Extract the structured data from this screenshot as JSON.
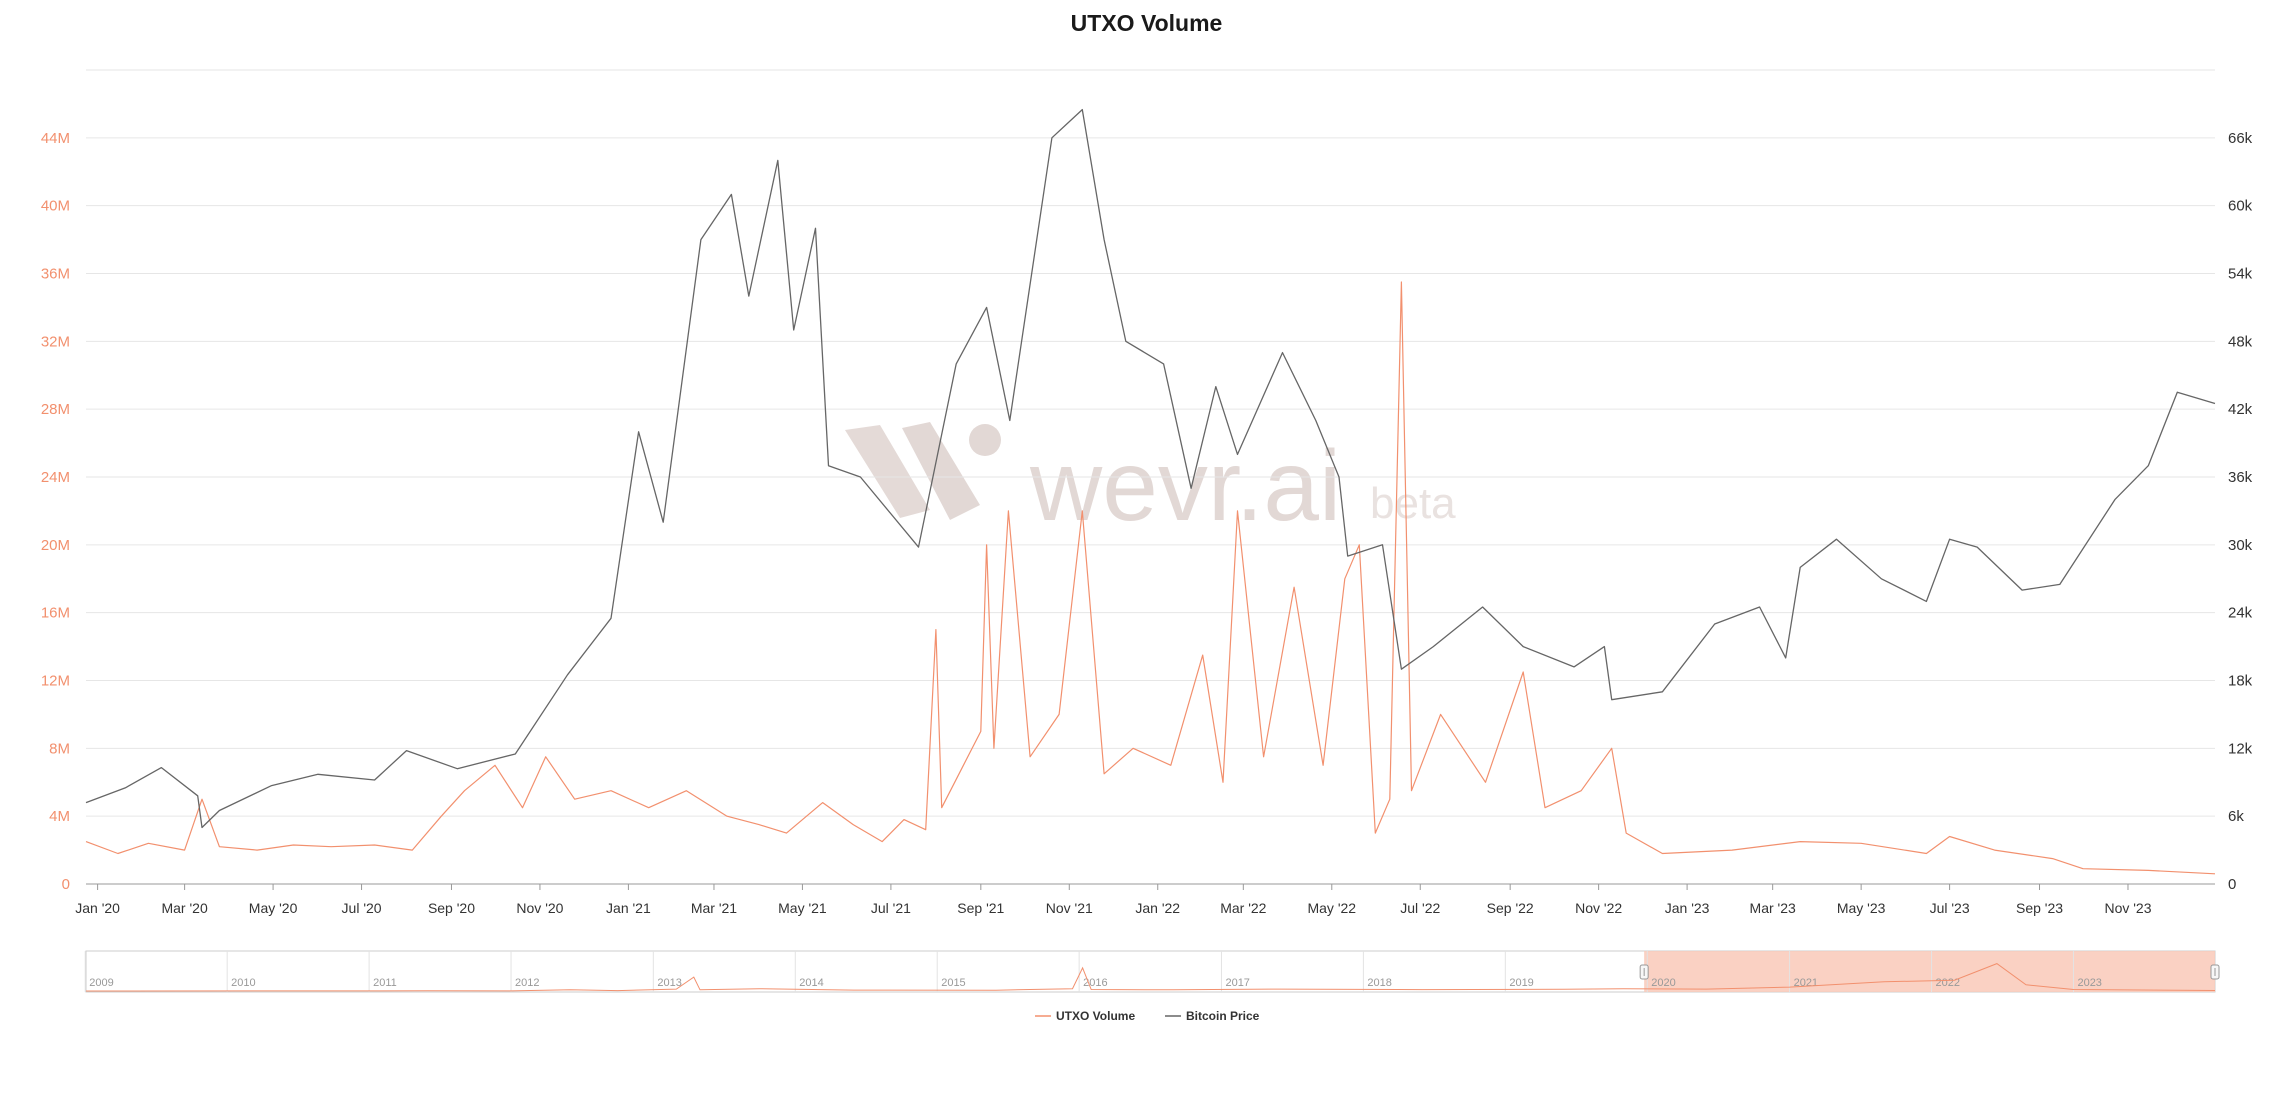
{
  "title": "UTXO Volume",
  "watermark": {
    "brand": "wevr.ai",
    "tag": "beta"
  },
  "colors": {
    "volume": "#f2906e",
    "price": "#666666",
    "navigator_fill": "#f9c9b8",
    "grid": "#e6e6e6"
  },
  "legend": [
    {
      "label": "UTXO Volume",
      "color": "#f2906e"
    },
    {
      "label": "Bitcoin Price",
      "color": "#666666"
    }
  ],
  "chart_data": {
    "type": "line",
    "title": "UTXO Volume",
    "x_range": [
      "2019-12-24",
      "2023-12-31"
    ],
    "y_left": {
      "label": "UTXO Volume",
      "range": [
        0,
        48000000
      ],
      "ticks": [
        0,
        4000000,
        8000000,
        12000000,
        16000000,
        20000000,
        24000000,
        28000000,
        32000000,
        36000000,
        40000000,
        44000000
      ],
      "tick_labels": [
        "0",
        "4M",
        "8M",
        "12M",
        "16M",
        "20M",
        "24M",
        "28M",
        "32M",
        "36M",
        "40M",
        "44M"
      ]
    },
    "y_right": {
      "label": "Bitcoin Price",
      "range": [
        0,
        72000
      ],
      "ticks": [
        0,
        6000,
        12000,
        18000,
        24000,
        30000,
        36000,
        42000,
        48000,
        54000,
        60000,
        66000
      ],
      "tick_labels": [
        "0",
        "6k",
        "12k",
        "18k",
        "24k",
        "30k",
        "36k",
        "42k",
        "48k",
        "54k",
        "60k",
        "66k"
      ]
    },
    "x_ticks": [
      {
        "date": "2020-01-01",
        "label": "Jan '20"
      },
      {
        "date": "2020-03-01",
        "label": "Mar '20"
      },
      {
        "date": "2020-05-01",
        "label": "May '20"
      },
      {
        "date": "2020-07-01",
        "label": "Jul '20"
      },
      {
        "date": "2020-09-01",
        "label": "Sep '20"
      },
      {
        "date": "2020-11-01",
        "label": "Nov '20"
      },
      {
        "date": "2021-01-01",
        "label": "Jan '21"
      },
      {
        "date": "2021-03-01",
        "label": "Mar '21"
      },
      {
        "date": "2021-05-01",
        "label": "May '21"
      },
      {
        "date": "2021-07-01",
        "label": "Jul '21"
      },
      {
        "date": "2021-09-01",
        "label": "Sep '21"
      },
      {
        "date": "2021-11-01",
        "label": "Nov '21"
      },
      {
        "date": "2022-01-01",
        "label": "Jan '22"
      },
      {
        "date": "2022-03-01",
        "label": "Mar '22"
      },
      {
        "date": "2022-05-01",
        "label": "May '22"
      },
      {
        "date": "2022-07-01",
        "label": "Jul '22"
      },
      {
        "date": "2022-09-01",
        "label": "Sep '22"
      },
      {
        "date": "2022-11-01",
        "label": "Nov '22"
      },
      {
        "date": "2023-01-01",
        "label": "Jan '23"
      },
      {
        "date": "2023-03-01",
        "label": "Mar '23"
      },
      {
        "date": "2023-05-01",
        "label": "May '23"
      },
      {
        "date": "2023-07-01",
        "label": "Jul '23"
      },
      {
        "date": "2023-09-01",
        "label": "Sep '23"
      },
      {
        "date": "2023-11-01",
        "label": "Nov '23"
      }
    ],
    "legend_position": "bottom",
    "grid": true,
    "series": [
      {
        "name": "UTXO Volume",
        "axis": "left",
        "color": "#f2906e",
        "points": [
          [
            "2019-12-24",
            2500000
          ],
          [
            "2020-01-15",
            1800000
          ],
          [
            "2020-02-05",
            2400000
          ],
          [
            "2020-03-01",
            2000000
          ],
          [
            "2020-03-13",
            5000000
          ],
          [
            "2020-03-25",
            2200000
          ],
          [
            "2020-04-20",
            2000000
          ],
          [
            "2020-05-15",
            2300000
          ],
          [
            "2020-06-10",
            2200000
          ],
          [
            "2020-07-10",
            2300000
          ],
          [
            "2020-08-05",
            2000000
          ],
          [
            "2020-08-25",
            4000000
          ],
          [
            "2020-09-10",
            5500000
          ],
          [
            "2020-10-01",
            7000000
          ],
          [
            "2020-10-20",
            4500000
          ],
          [
            "2020-11-05",
            7500000
          ],
          [
            "2020-11-25",
            5000000
          ],
          [
            "2020-12-20",
            5500000
          ],
          [
            "2021-01-15",
            4500000
          ],
          [
            "2021-02-10",
            5500000
          ],
          [
            "2021-03-10",
            4000000
          ],
          [
            "2021-04-01",
            3500000
          ],
          [
            "2021-04-20",
            3000000
          ],
          [
            "2021-05-15",
            4800000
          ],
          [
            "2021-06-05",
            3500000
          ],
          [
            "2021-06-25",
            2500000
          ],
          [
            "2021-07-10",
            3800000
          ],
          [
            "2021-07-25",
            3200000
          ],
          [
            "2021-08-01",
            15000000
          ],
          [
            "2021-08-05",
            4500000
          ],
          [
            "2021-08-20",
            7000000
          ],
          [
            "2021-09-01",
            9000000
          ],
          [
            "2021-09-05",
            20000000
          ],
          [
            "2021-09-10",
            8000000
          ],
          [
            "2021-09-20",
            22000000
          ],
          [
            "2021-10-05",
            7500000
          ],
          [
            "2021-10-25",
            10000000
          ],
          [
            "2021-11-10",
            22000000
          ],
          [
            "2021-11-25",
            6500000
          ],
          [
            "2021-12-15",
            8000000
          ],
          [
            "2022-01-10",
            7000000
          ],
          [
            "2022-02-01",
            13500000
          ],
          [
            "2022-02-15",
            6000000
          ],
          [
            "2022-02-25",
            22000000
          ],
          [
            "2022-03-15",
            7500000
          ],
          [
            "2022-04-05",
            17500000
          ],
          [
            "2022-04-25",
            7000000
          ],
          [
            "2022-05-10",
            18000000
          ],
          [
            "2022-05-20",
            20000000
          ],
          [
            "2022-05-31",
            3000000
          ],
          [
            "2022-06-10",
            5000000
          ],
          [
            "2022-06-18",
            35500000
          ],
          [
            "2022-06-25",
            5500000
          ],
          [
            "2022-07-15",
            10000000
          ],
          [
            "2022-08-15",
            6000000
          ],
          [
            "2022-09-10",
            12500000
          ],
          [
            "2022-09-25",
            4500000
          ],
          [
            "2022-10-20",
            5500000
          ],
          [
            "2022-11-10",
            8000000
          ],
          [
            "2022-11-20",
            3000000
          ],
          [
            "2022-12-15",
            1800000
          ],
          [
            "2023-02-01",
            2000000
          ],
          [
            "2023-03-20",
            2500000
          ],
          [
            "2023-05-01",
            2400000
          ],
          [
            "2023-06-15",
            1800000
          ],
          [
            "2023-07-01",
            2800000
          ],
          [
            "2023-08-01",
            2000000
          ],
          [
            "2023-09-10",
            1500000
          ],
          [
            "2023-10-01",
            900000
          ],
          [
            "2023-11-15",
            800000
          ],
          [
            "2023-12-31",
            600000
          ]
        ]
      },
      {
        "name": "Bitcoin Price",
        "axis": "right",
        "color": "#666666",
        "points": [
          [
            "2019-12-24",
            7200
          ],
          [
            "2020-01-20",
            8500
          ],
          [
            "2020-02-14",
            10300
          ],
          [
            "2020-03-10",
            7800
          ],
          [
            "2020-03-13",
            5000
          ],
          [
            "2020-03-25",
            6500
          ],
          [
            "2020-04-30",
            8700
          ],
          [
            "2020-06-01",
            9700
          ],
          [
            "2020-07-10",
            9200
          ],
          [
            "2020-08-01",
            11800
          ],
          [
            "2020-09-05",
            10200
          ],
          [
            "2020-10-15",
            11500
          ],
          [
            "2020-11-20",
            18500
          ],
          [
            "2020-12-20",
            23500
          ],
          [
            "2021-01-08",
            40000
          ],
          [
            "2021-01-25",
            32000
          ],
          [
            "2021-02-20",
            57000
          ],
          [
            "2021-03-13",
            61000
          ],
          [
            "2021-03-25",
            52000
          ],
          [
            "2021-04-14",
            64000
          ],
          [
            "2021-04-25",
            49000
          ],
          [
            "2021-05-10",
            58000
          ],
          [
            "2021-05-19",
            37000
          ],
          [
            "2021-06-10",
            36000
          ],
          [
            "2021-07-20",
            29800
          ],
          [
            "2021-08-15",
            46000
          ],
          [
            "2021-09-05",
            51000
          ],
          [
            "2021-09-21",
            41000
          ],
          [
            "2021-10-20",
            66000
          ],
          [
            "2021-11-10",
            68500
          ],
          [
            "2021-11-25",
            57000
          ],
          [
            "2021-12-10",
            48000
          ],
          [
            "2022-01-05",
            46000
          ],
          [
            "2022-01-24",
            35000
          ],
          [
            "2022-02-10",
            44000
          ],
          [
            "2022-02-25",
            38000
          ],
          [
            "2022-03-28",
            47000
          ],
          [
            "2022-04-20",
            41000
          ],
          [
            "2022-05-06",
            36000
          ],
          [
            "2022-05-12",
            29000
          ],
          [
            "2022-06-05",
            30000
          ],
          [
            "2022-06-18",
            19000
          ],
          [
            "2022-07-10",
            21000
          ],
          [
            "2022-08-13",
            24500
          ],
          [
            "2022-09-10",
            21000
          ],
          [
            "2022-10-15",
            19200
          ],
          [
            "2022-11-05",
            21000
          ],
          [
            "2022-11-10",
            16300
          ],
          [
            "2022-12-15",
            17000
          ],
          [
            "2023-01-20",
            23000
          ],
          [
            "2023-02-20",
            24500
          ],
          [
            "2023-03-10",
            20000
          ],
          [
            "2023-03-20",
            28000
          ],
          [
            "2023-04-14",
            30500
          ],
          [
            "2023-05-15",
            27000
          ],
          [
            "2023-06-15",
            25000
          ],
          [
            "2023-07-01",
            30500
          ],
          [
            "2023-07-20",
            29800
          ],
          [
            "2023-08-20",
            26000
          ],
          [
            "2023-09-15",
            26500
          ],
          [
            "2023-10-23",
            34000
          ],
          [
            "2023-11-15",
            37000
          ],
          [
            "2023-12-05",
            43500
          ],
          [
            "2023-12-31",
            42500
          ]
        ]
      }
    ]
  },
  "navigator": {
    "year_labels": [
      "2009",
      "2010",
      "2011",
      "2012",
      "2013",
      "2014",
      "2015",
      "2016",
      "2017",
      "2018",
      "2019",
      "2020",
      "2021",
      "2022",
      "2023"
    ],
    "full_range": [
      "2009-01-03",
      "2023-12-31"
    ],
    "selected_range": [
      "2019-12-24",
      "2023-12-31"
    ],
    "overview_points": [
      [
        "2009-01-03",
        0
      ],
      [
        "2011-06-01",
        200000
      ],
      [
        "2012-01-01",
        150000
      ],
      [
        "2012-06-01",
        1500000
      ],
      [
        "2012-10-01",
        500000
      ],
      [
        "2013-03-01",
        2500000
      ],
      [
        "2013-04-15",
        18000000
      ],
      [
        "2013-05-01",
        1500000
      ],
      [
        "2013-10-01",
        3000000
      ],
      [
        "2014-06-01",
        1200000
      ],
      [
        "2015-06-01",
        1000000
      ],
      [
        "2015-12-15",
        3000000
      ],
      [
        "2016-01-10",
        30000000
      ],
      [
        "2016-02-01",
        2000000
      ],
      [
        "2016-09-01",
        1500000
      ],
      [
        "2017-06-01",
        2500000
      ],
      [
        "2018-06-01",
        1800000
      ],
      [
        "2019-06-01",
        2200000
      ],
      [
        "2019-11-01",
        3000000
      ],
      [
        "2020-06-01",
        2500000
      ],
      [
        "2021-01-01",
        5000000
      ],
      [
        "2021-09-01",
        12000000
      ],
      [
        "2022-03-01",
        14000000
      ],
      [
        "2022-06-18",
        35500000
      ],
      [
        "2022-09-01",
        8000000
      ],
      [
        "2023-01-01",
        2000000
      ],
      [
        "2023-12-31",
        700000
      ]
    ]
  }
}
